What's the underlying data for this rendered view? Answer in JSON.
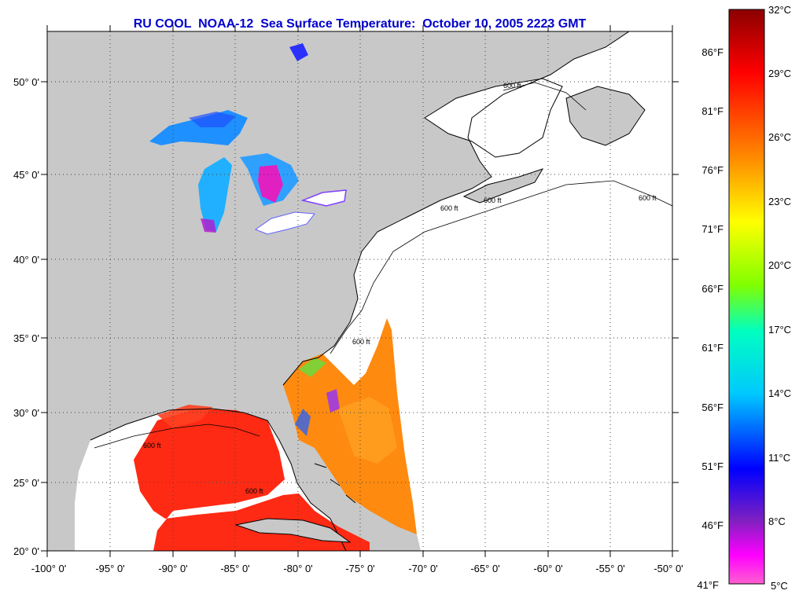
{
  "title": "RU COOL  NOAA-12  Sea Surface Temperature:  October 10, 2005 2223 GMT",
  "map": {
    "lat_labels": [
      "50° 0'",
      "45° 0'",
      "40° 0'",
      "35° 0'",
      "30° 0'",
      "25° 0'",
      "20° 0'"
    ],
    "lon_labels": [
      "-100° 0'",
      "-95° 0'",
      "-90° 0'",
      "-85° 0'",
      "-80° 0'",
      "-75° 0'",
      "-70° 0'",
      "-65° 0'",
      "-60° 0'",
      "-55° 0'",
      "-50° 0'"
    ],
    "isobath_label": "600 ft",
    "land_color": "#c8c8c8",
    "water_color": "#ffffff",
    "grid": "dotted"
  },
  "colorbar": {
    "celsius_labels": [
      "32°C",
      "29°C",
      "26°C",
      "23°C",
      "20°C",
      "17°C",
      "14°C",
      "11°C",
      "8°C",
      "5°C"
    ],
    "fahrenheit_labels": [
      "86°F",
      "81°F",
      "76°F",
      "71°F",
      "66°F",
      "61°F",
      "56°F",
      "51°F",
      "46°F",
      "41°F"
    ],
    "stops": [
      "#8b0000",
      "#ff0000",
      "#ff8c00",
      "#ffff00",
      "#80ff00",
      "#00ffc0",
      "#00c8ff",
      "#0000ff",
      "#8020c0",
      "#ff00ff",
      "#ff60d0"
    ]
  }
}
